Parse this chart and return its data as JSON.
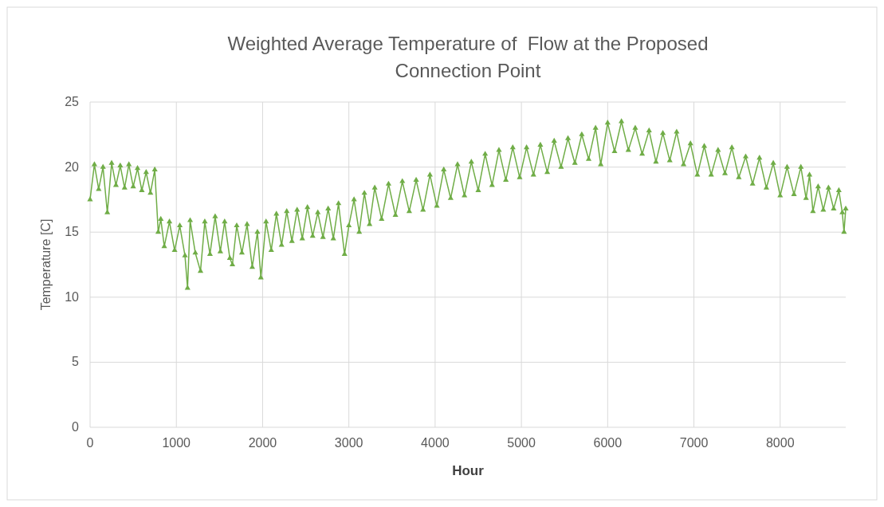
{
  "chart_data": {
    "type": "line",
    "title": "Weighted Average Temperature of  Flow at the Proposed Connection Point",
    "xlabel": "Hour",
    "ylabel": "Temperature [C]",
    "xlim": [
      0,
      8760
    ],
    "xticks": [
      0,
      1000,
      2000,
      3000,
      4000,
      5000,
      6000,
      7000,
      8000
    ],
    "ylim": [
      0,
      25
    ],
    "yticks": [
      0,
      5,
      10,
      15,
      20,
      25
    ],
    "grid": true,
    "marker": "triangle",
    "line_style": "solid",
    "x": [
      0,
      50,
      100,
      150,
      200,
      250,
      300,
      350,
      400,
      450,
      500,
      550,
      600,
      650,
      700,
      750,
      790,
      820,
      860,
      920,
      980,
      1040,
      1100,
      1130,
      1160,
      1220,
      1280,
      1330,
      1390,
      1450,
      1510,
      1560,
      1620,
      1650,
      1700,
      1760,
      1820,
      1880,
      1940,
      1980,
      2040,
      2100,
      2160,
      2220,
      2280,
      2340,
      2400,
      2460,
      2520,
      2580,
      2640,
      2700,
      2760,
      2820,
      2880,
      2950,
      3000,
      3060,
      3120,
      3180,
      3240,
      3300,
      3380,
      3460,
      3540,
      3620,
      3700,
      3780,
      3860,
      3940,
      4020,
      4100,
      4180,
      4260,
      4340,
      4420,
      4500,
      4580,
      4660,
      4740,
      4820,
      4900,
      4980,
      5060,
      5140,
      5220,
      5300,
      5380,
      5460,
      5540,
      5620,
      5700,
      5780,
      5860,
      5920,
      6000,
      6080,
      6160,
      6240,
      6320,
      6400,
      6480,
      6560,
      6640,
      6720,
      6800,
      6880,
      6960,
      7040,
      7120,
      7200,
      7280,
      7360,
      7440,
      7520,
      7600,
      7680,
      7760,
      7840,
      7920,
      8000,
      8080,
      8160,
      8240,
      8300,
      8340,
      8380,
      8440,
      8500,
      8560,
      8620,
      8680,
      8720,
      8740,
      8760
    ],
    "series": [
      {
        "color": "#70ad47",
        "values": [
          17.5,
          20.2,
          18.3,
          20.0,
          16.5,
          20.3,
          18.6,
          20.1,
          18.4,
          20.2,
          18.5,
          19.9,
          18.2,
          19.6,
          18.0,
          19.8,
          15.0,
          16.0,
          13.9,
          15.8,
          13.6,
          15.5,
          13.2,
          10.7,
          15.9,
          13.4,
          12.0,
          15.8,
          13.3,
          16.2,
          13.5,
          15.8,
          13.0,
          12.5,
          15.5,
          13.4,
          15.6,
          12.3,
          15.0,
          11.5,
          15.8,
          13.6,
          16.4,
          14.0,
          16.6,
          14.3,
          16.7,
          14.5,
          16.9,
          14.7,
          16.5,
          14.6,
          16.8,
          14.5,
          17.2,
          13.3,
          15.5,
          17.5,
          15.0,
          18.0,
          15.6,
          18.4,
          16.0,
          18.7,
          16.3,
          18.9,
          16.6,
          19.0,
          16.7,
          19.4,
          17.0,
          19.8,
          17.6,
          20.2,
          17.8,
          20.4,
          18.2,
          21.0,
          18.6,
          21.3,
          19.0,
          21.5,
          19.2,
          21.5,
          19.4,
          21.7,
          19.6,
          22.0,
          20.0,
          22.2,
          20.3,
          22.5,
          20.6,
          23.0,
          20.2,
          23.4,
          21.2,
          23.5,
          21.3,
          23.0,
          21.0,
          22.8,
          20.4,
          22.6,
          20.5,
          22.7,
          20.2,
          21.8,
          19.4,
          21.6,
          19.4,
          21.3,
          19.5,
          21.5,
          19.2,
          20.8,
          18.7,
          20.7,
          18.4,
          20.3,
          17.8,
          20.0,
          17.9,
          20.0,
          17.6,
          19.4,
          16.6,
          18.5,
          16.7,
          18.4,
          16.8,
          18.2,
          16.5,
          15.0,
          16.8
        ]
      }
    ]
  }
}
